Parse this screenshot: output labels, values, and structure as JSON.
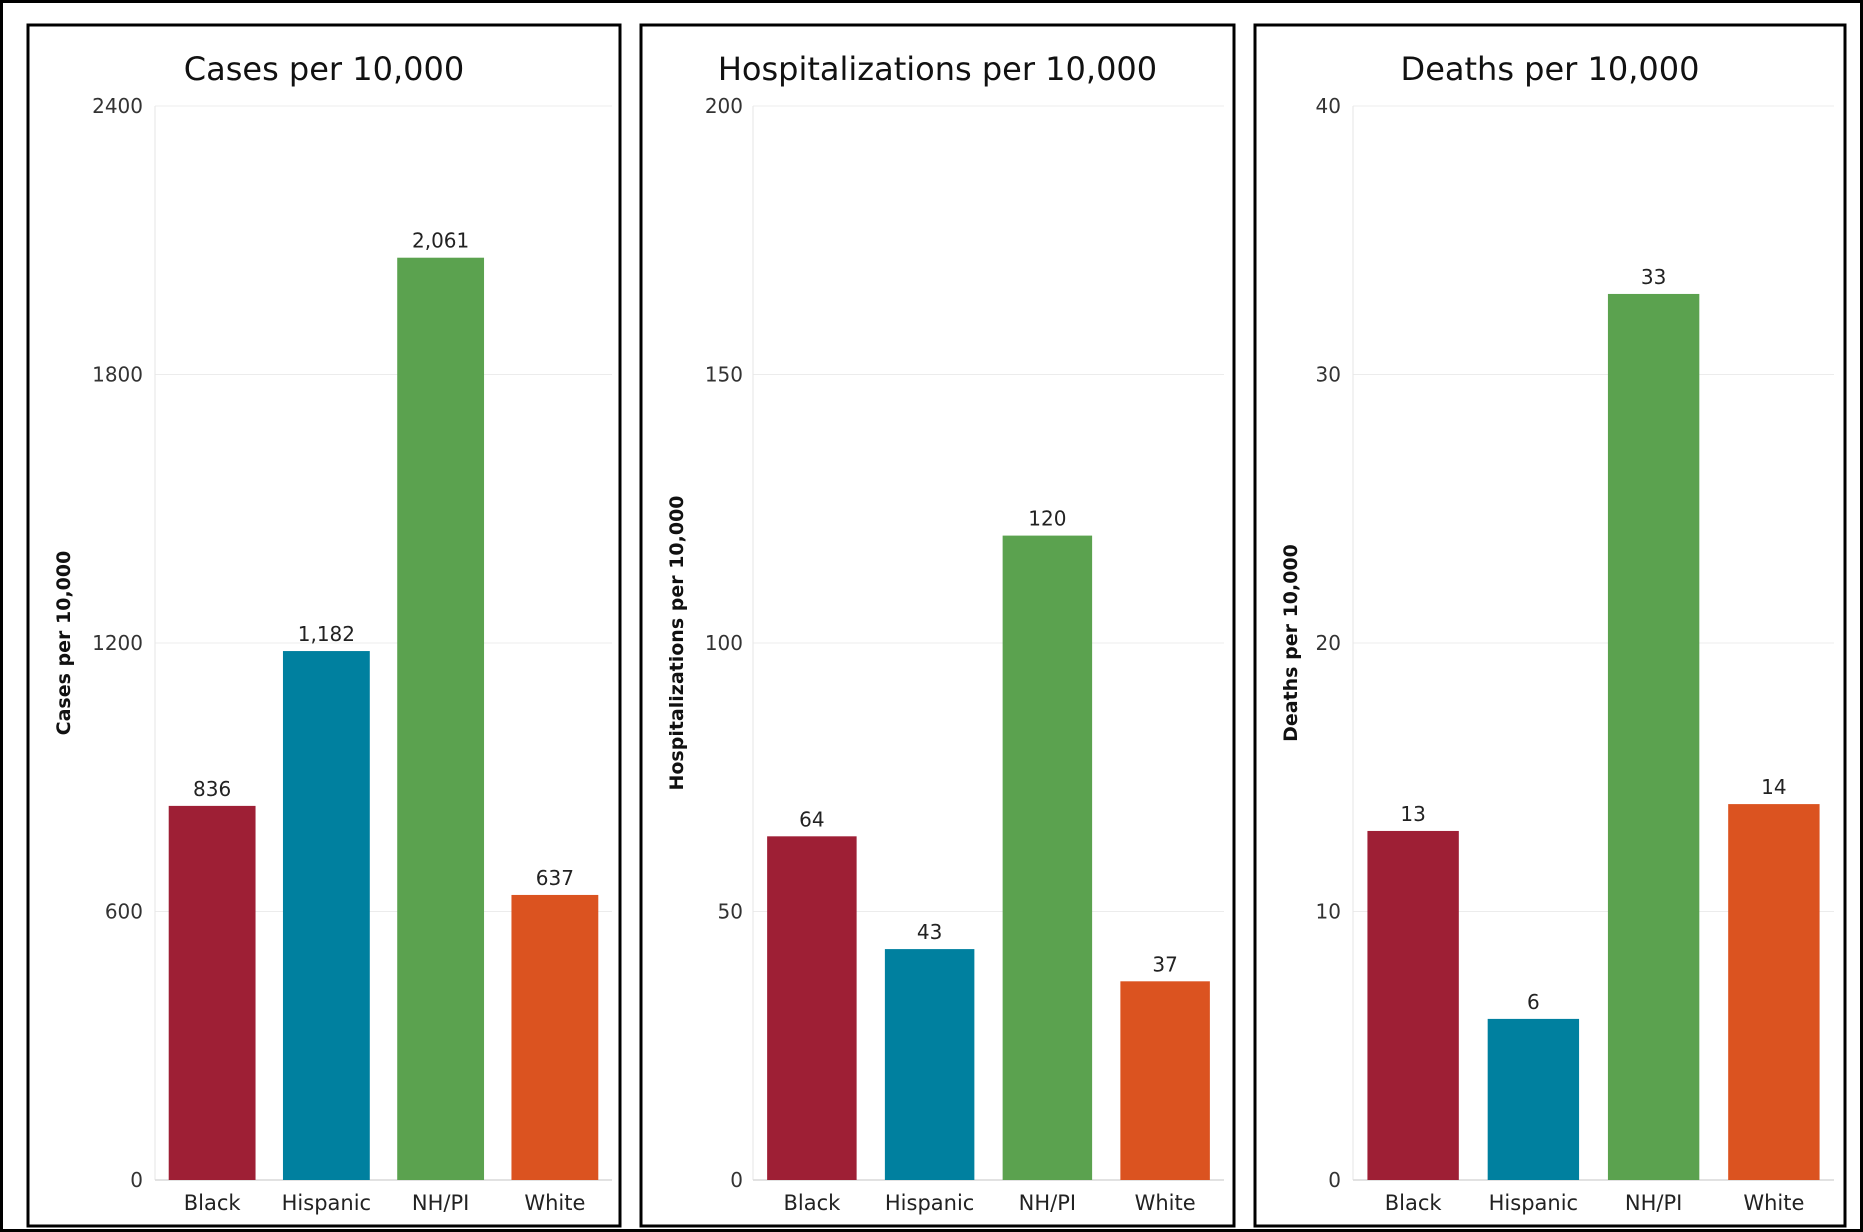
{
  "colors": {
    "Black": "#9e1f35",
    "Hispanic": "#00809f",
    "NH/PI": "#5ba24f",
    "White": "#db5320"
  },
  "chart_data": [
    {
      "type": "bar",
      "title": "Cases per 10,000",
      "ylabel": "Cases per 10,000",
      "categories": [
        "Black",
        "Hispanic",
        "NH/PI",
        "White"
      ],
      "values": [
        836,
        1182,
        2061,
        637
      ],
      "value_labels": [
        "836",
        "1,182",
        "2,061",
        "637"
      ],
      "yticks": [
        0,
        600,
        1200,
        1800,
        2400
      ],
      "ylim": [
        0,
        2400
      ],
      "grid": true
    },
    {
      "type": "bar",
      "title": "Hospitalizations per 10,000",
      "ylabel": "Hospitalizations per 10,000",
      "categories": [
        "Black",
        "Hispanic",
        "NH/PI",
        "White"
      ],
      "values": [
        64,
        43,
        120,
        37
      ],
      "value_labels": [
        "64",
        "43",
        "120",
        "37"
      ],
      "yticks": [
        0,
        50,
        100,
        150,
        200
      ],
      "ylim": [
        0,
        200
      ],
      "grid": true
    },
    {
      "type": "bar",
      "title": "Deaths per 10,000",
      "ylabel": "Deaths per 10,000",
      "categories": [
        "Black",
        "Hispanic",
        "NH/PI",
        "White"
      ],
      "values": [
        13,
        6,
        33,
        14
      ],
      "value_labels": [
        "13",
        "6",
        "33",
        "14"
      ],
      "yticks": [
        0,
        10,
        20,
        30,
        40
      ],
      "ylim": [
        0,
        40
      ],
      "grid": true
    }
  ]
}
